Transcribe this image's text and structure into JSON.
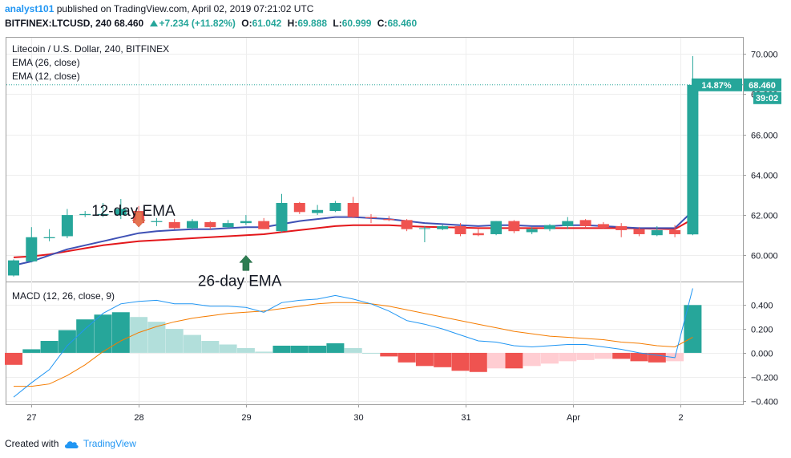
{
  "header": {
    "author": "analyst101",
    "published_text": "published on TradingView.com, April 02, 2019 07:21:02 UTC",
    "symbol": "BITFINEX:LTCUSD, 240",
    "last": "68.460",
    "change": "+7.234 (+11.82%)",
    "o_label": "O:",
    "o_value": "61.042",
    "h_label": "H:",
    "h_value": "69.888",
    "l_label": "L:",
    "l_value": "60.999",
    "c_label": "C:",
    "c_value": "68.460"
  },
  "footer": {
    "created_with": "Created with",
    "brand": "TradingView"
  },
  "colors": {
    "up": "#26a69a",
    "down": "#ef5350",
    "ema12": "#3f51b5",
    "ema26": "#e3171b",
    "macd_line": "#2196f3",
    "signal_line": "#f57c00",
    "hist_up_strong": "#26a69a",
    "hist_up_weak": "#b2dfdb",
    "hist_down_strong": "#ef5350",
    "hist_down_weak": "#ffcdd2"
  },
  "chart_data": [
    {
      "type": "candlestick",
      "title": "Litecoin / U.S. Dollar, 240, BITFINEX",
      "indicators": [
        "EMA (26, close)",
        "EMA (12, close)"
      ],
      "ylim": [
        58.7,
        70.8
      ],
      "yticks": [
        "60.000",
        "62.000",
        "64.000",
        "66.000",
        "68.000",
        "70.000"
      ],
      "xticks": [
        {
          "label": "27",
          "index": 1
        },
        {
          "label": "28",
          "index": 7
        },
        {
          "label": "29",
          "index": 13
        },
        {
          "label": "30",
          "index": 19.3
        },
        {
          "label": "31",
          "index": 25.3
        },
        {
          "label": "Apr",
          "index": 31.3
        },
        {
          "label": "2",
          "index": 37.3
        }
      ],
      "price_label": "68.460",
      "pct_label": "14.87%",
      "countdown_label": "39:02",
      "annotations": [
        {
          "text": "12-day EMA",
          "arrow": "down",
          "index": 7,
          "value": 61.4
        },
        {
          "text": "26-day EMA",
          "arrow": "up",
          "index": 13,
          "value": 60.0
        }
      ],
      "candles": [
        {
          "o": 59.0,
          "h": 59.8,
          "l": 58.95,
          "c": 59.75
        },
        {
          "o": 59.7,
          "h": 61.4,
          "l": 59.65,
          "c": 60.9
        },
        {
          "o": 60.85,
          "h": 61.3,
          "l": 60.7,
          "c": 60.9
        },
        {
          "o": 60.95,
          "h": 62.3,
          "l": 60.85,
          "c": 62.0
        },
        {
          "o": 62.0,
          "h": 62.2,
          "l": 61.9,
          "c": 62.05
        },
        {
          "o": 62.0,
          "h": 62.6,
          "l": 61.9,
          "c": 62.05
        },
        {
          "o": 62.0,
          "h": 62.8,
          "l": 61.8,
          "c": 62.3
        },
        {
          "o": 62.2,
          "h": 62.45,
          "l": 61.5,
          "c": 61.6
        },
        {
          "o": 61.65,
          "h": 61.85,
          "l": 61.45,
          "c": 61.7
        },
        {
          "o": 61.65,
          "h": 61.8,
          "l": 61.3,
          "c": 61.35
        },
        {
          "o": 61.35,
          "h": 61.8,
          "l": 61.3,
          "c": 61.7
        },
        {
          "o": 61.65,
          "h": 61.7,
          "l": 61.3,
          "c": 61.4
        },
        {
          "o": 61.4,
          "h": 61.75,
          "l": 61.35,
          "c": 61.6
        },
        {
          "o": 61.6,
          "h": 62.0,
          "l": 61.5,
          "c": 61.7
        },
        {
          "o": 61.7,
          "h": 61.85,
          "l": 61.3,
          "c": 61.3
        },
        {
          "o": 61.2,
          "h": 63.05,
          "l": 61.15,
          "c": 62.6
        },
        {
          "o": 62.6,
          "h": 62.65,
          "l": 62.05,
          "c": 62.15
        },
        {
          "o": 62.1,
          "h": 62.5,
          "l": 62.0,
          "c": 62.25
        },
        {
          "o": 62.2,
          "h": 62.7,
          "l": 62.15,
          "c": 62.6
        },
        {
          "o": 62.6,
          "h": 62.9,
          "l": 61.85,
          "c": 61.9
        },
        {
          "o": 61.9,
          "h": 62.05,
          "l": 61.6,
          "c": 61.85
        },
        {
          "o": 61.8,
          "h": 61.95,
          "l": 61.7,
          "c": 61.75
        },
        {
          "o": 61.75,
          "h": 61.8,
          "l": 61.2,
          "c": 61.3
        },
        {
          "o": 61.35,
          "h": 61.45,
          "l": 60.65,
          "c": 61.35
        },
        {
          "o": 61.3,
          "h": 61.55,
          "l": 61.25,
          "c": 61.45
        },
        {
          "o": 61.45,
          "h": 61.6,
          "l": 60.95,
          "c": 61.05
        },
        {
          "o": 61.1,
          "h": 61.3,
          "l": 60.95,
          "c": 61.0
        },
        {
          "o": 61.05,
          "h": 61.7,
          "l": 61.0,
          "c": 61.7
        },
        {
          "o": 61.7,
          "h": 61.75,
          "l": 61.1,
          "c": 61.2
        },
        {
          "o": 61.15,
          "h": 61.4,
          "l": 61.05,
          "c": 61.3
        },
        {
          "o": 61.3,
          "h": 61.55,
          "l": 61.2,
          "c": 61.5
        },
        {
          "o": 61.45,
          "h": 61.9,
          "l": 61.3,
          "c": 61.7
        },
        {
          "o": 61.75,
          "h": 61.8,
          "l": 61.35,
          "c": 61.45
        },
        {
          "o": 61.55,
          "h": 61.65,
          "l": 61.35,
          "c": 61.4
        },
        {
          "o": 61.45,
          "h": 61.6,
          "l": 60.9,
          "c": 61.25
        },
        {
          "o": 61.3,
          "h": 61.4,
          "l": 60.95,
          "c": 61.05
        },
        {
          "o": 61.0,
          "h": 61.45,
          "l": 60.95,
          "c": 61.25
        },
        {
          "o": 61.25,
          "h": 61.5,
          "l": 60.9,
          "c": 61.05
        },
        {
          "o": 61.04,
          "h": 69.89,
          "l": 61.0,
          "c": 68.46
        }
      ],
      "ema12": [
        59.5,
        59.7,
        60.0,
        60.3,
        60.5,
        60.7,
        60.9,
        61.1,
        61.2,
        61.25,
        61.3,
        61.3,
        61.35,
        61.4,
        61.4,
        61.55,
        61.7,
        61.8,
        61.9,
        61.9,
        61.85,
        61.8,
        61.7,
        61.6,
        61.55,
        61.5,
        61.45,
        61.5,
        61.5,
        61.45,
        61.45,
        61.5,
        61.5,
        61.45,
        61.4,
        61.35,
        61.35,
        61.35,
        62.2
      ],
      "ema26": [
        59.9,
        59.95,
        60.05,
        60.2,
        60.35,
        60.5,
        60.6,
        60.7,
        60.75,
        60.8,
        60.85,
        60.9,
        60.95,
        61.0,
        61.05,
        61.15,
        61.25,
        61.35,
        61.45,
        61.5,
        61.5,
        61.5,
        61.45,
        61.42,
        61.4,
        61.38,
        61.35,
        61.35,
        61.35,
        61.35,
        61.35,
        61.35,
        61.35,
        61.35,
        61.35,
        61.33,
        61.32,
        61.3,
        61.8
      ]
    },
    {
      "type": "macd",
      "title": "MACD (12, 26, close, 9)",
      "ylim": [
        -0.43,
        0.59
      ],
      "yticks": [
        "0.400",
        "0.200",
        "0.000",
        "−0.200",
        "−0.400"
      ],
      "histogram": [
        -0.1,
        0.03,
        0.1,
        0.19,
        0.28,
        0.32,
        0.34,
        0.3,
        0.26,
        0.2,
        0.15,
        0.1,
        0.07,
        0.04,
        0.01,
        0.06,
        0.06,
        0.06,
        0.08,
        0.04,
        0.0,
        -0.03,
        -0.08,
        -0.11,
        -0.12,
        -0.15,
        -0.16,
        -0.13,
        -0.13,
        -0.11,
        -0.09,
        -0.07,
        -0.06,
        -0.05,
        -0.05,
        -0.07,
        -0.08,
        -0.07,
        0.4
      ],
      "macd": [
        -0.37,
        -0.25,
        -0.14,
        0.06,
        0.2,
        0.33,
        0.41,
        0.43,
        0.44,
        0.41,
        0.41,
        0.39,
        0.39,
        0.38,
        0.34,
        0.42,
        0.44,
        0.45,
        0.48,
        0.45,
        0.41,
        0.35,
        0.27,
        0.24,
        0.2,
        0.15,
        0.1,
        0.09,
        0.06,
        0.05,
        0.06,
        0.07,
        0.07,
        0.05,
        0.03,
        0.0,
        -0.02,
        -0.04,
        0.54
      ],
      "signal": [
        -0.28,
        -0.28,
        -0.26,
        -0.19,
        -0.1,
        0.01,
        0.1,
        0.17,
        0.22,
        0.26,
        0.29,
        0.31,
        0.33,
        0.34,
        0.35,
        0.37,
        0.39,
        0.41,
        0.42,
        0.42,
        0.41,
        0.39,
        0.36,
        0.33,
        0.3,
        0.27,
        0.24,
        0.21,
        0.18,
        0.16,
        0.14,
        0.13,
        0.12,
        0.11,
        0.09,
        0.08,
        0.06,
        0.05,
        0.13
      ]
    }
  ]
}
